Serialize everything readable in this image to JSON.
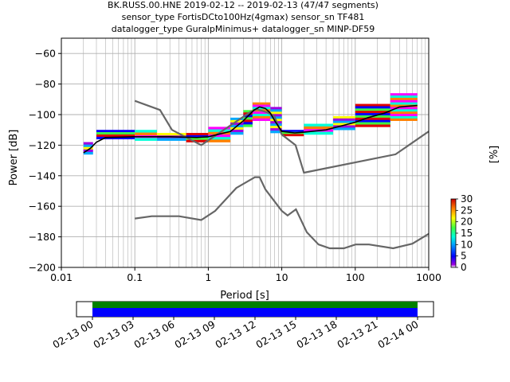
{
  "chart_data": {
    "type": "heatmap",
    "title_lines": [
      "BK.RUSS.00.HNE   2019-02-12 -- 2019-02-13  (47/47 segments)",
      "sensor_type FortisDCto100Hz(4gmax) sensor_sn TF481",
      "datalogger_type GuralpMinimus+ datalogger_sn MINP-DF59"
    ],
    "xlabel": "Period [s]",
    "ylabel": "Power [dB]",
    "xscale": "log",
    "xlim": [
      0.01,
      1000
    ],
    "ylim": [
      -200,
      -50
    ],
    "xticks": [
      {
        "v": 0.01,
        "label": "0.01"
      },
      {
        "v": 0.1,
        "label": "0.1"
      },
      {
        "v": 1,
        "label": "1"
      },
      {
        "v": 10,
        "label": "10"
      },
      {
        "v": 100,
        "label": "100"
      },
      {
        "v": 1000,
        "label": "1000"
      }
    ],
    "yticks": [
      {
        "v": -60,
        "label": "−60"
      },
      {
        "v": -80,
        "label": "−80"
      },
      {
        "v": -100,
        "label": "−100"
      },
      {
        "v": -120,
        "label": "−120"
      },
      {
        "v": -140,
        "label": "−140"
      },
      {
        "v": -160,
        "label": "−160"
      },
      {
        "v": -180,
        "label": "−180"
      },
      {
        "v": -200,
        "label": "−200"
      }
    ],
    "grid": true,
    "colorbar": {
      "label": "[%]",
      "range": [
        0,
        30
      ],
      "ticks": [
        {
          "v": 0,
          "label": "0"
        },
        {
          "v": 5,
          "label": "5"
        },
        {
          "v": 10,
          "label": "10"
        },
        {
          "v": 15,
          "label": "15"
        },
        {
          "v": 20,
          "label": "20"
        },
        {
          "v": 25,
          "label": "25"
        },
        {
          "v": 30,
          "label": "30"
        }
      ]
    },
    "nhnm": [
      [
        0.1,
        -91
      ],
      [
        0.22,
        -97
      ],
      [
        0.32,
        -110
      ],
      [
        0.8,
        -120
      ],
      [
        3.8,
        -98
      ],
      [
        4.6,
        -96.5
      ],
      [
        6.3,
        -98.5
      ],
      [
        7.9,
        -101
      ],
      [
        10,
        -113
      ],
      [
        15.4,
        -120
      ],
      [
        20,
        -138
      ],
      [
        354,
        -126
      ],
      [
        1000,
        -111
      ]
    ],
    "nlnm": [
      [
        0.1,
        -168
      ],
      [
        0.17,
        -166.5
      ],
      [
        0.4,
        -166.5
      ],
      [
        0.8,
        -169
      ],
      [
        1.24,
        -163
      ],
      [
        2.4,
        -148
      ],
      [
        4.3,
        -141
      ],
      [
        5,
        -141
      ],
      [
        6,
        -149
      ],
      [
        10,
        -163
      ],
      [
        12,
        -166
      ],
      [
        15.6,
        -162
      ],
      [
        21.9,
        -177
      ],
      [
        31.6,
        -185
      ],
      [
        45,
        -187.5
      ],
      [
        70,
        -187.5
      ],
      [
        101,
        -185
      ],
      [
        154,
        -185
      ],
      [
        328,
        -187.5
      ],
      [
        600,
        -184.5
      ],
      [
        1000,
        -178
      ]
    ],
    "median": [
      [
        0.02,
        -125
      ],
      [
        0.025,
        -122
      ],
      [
        0.03,
        -118
      ],
      [
        0.04,
        -115
      ],
      [
        0.1,
        -114.5
      ],
      [
        0.3,
        -114.5
      ],
      [
        0.7,
        -115
      ],
      [
        1,
        -114.5
      ],
      [
        2,
        -111
      ],
      [
        3,
        -104
      ],
      [
        4.2,
        -97
      ],
      [
        5,
        -95
      ],
      [
        6,
        -96
      ],
      [
        7,
        -99
      ],
      [
        8,
        -104
      ],
      [
        10,
        -111
      ],
      [
        15,
        -112
      ],
      [
        20,
        -111.5
      ],
      [
        40,
        -110
      ],
      [
        70,
        -107
      ],
      [
        100,
        -105
      ],
      [
        150,
        -102
      ],
      [
        250,
        -99
      ],
      [
        400,
        -95
      ],
      [
        700,
        -94
      ]
    ],
    "psd_band": [
      {
        "x": [
          0.02,
          0.027
        ],
        "y": [
          -126,
          -118
        ]
      },
      {
        "x": [
          0.03,
          0.1
        ],
        "y": [
          -116,
          -110
        ]
      },
      {
        "x": [
          0.1,
          0.2
        ],
        "y": [
          -117,
          -110
        ]
      },
      {
        "x": [
          0.2,
          0.5
        ],
        "y": [
          -117,
          -112
        ]
      },
      {
        "x": [
          0.5,
          1
        ],
        "y": [
          -118,
          -112
        ]
      },
      {
        "x": [
          1,
          2
        ],
        "y": [
          -118,
          -108
        ]
      },
      {
        "x": [
          2,
          3
        ],
        "y": [
          -113,
          -102
        ]
      },
      {
        "x": [
          3,
          4
        ],
        "y": [
          -108,
          -97
        ]
      },
      {
        "x": [
          4,
          7
        ],
        "y": [
          -104,
          -92
        ]
      },
      {
        "x": [
          7,
          10
        ],
        "y": [
          -112,
          -95
        ]
      },
      {
        "x": [
          10,
          20
        ],
        "y": [
          -114,
          -110
        ]
      },
      {
        "x": [
          20,
          50
        ],
        "y": [
          -113,
          -106
        ]
      },
      {
        "x": [
          50,
          100
        ],
        "y": [
          -110,
          -101
        ]
      },
      {
        "x": [
          100,
          300
        ],
        "y": [
          -108,
          -93
        ]
      },
      {
        "x": [
          300,
          700
        ],
        "y": [
          -104,
          -86
        ]
      }
    ],
    "timeline": {
      "ticks": [
        "02-13 00",
        "02-13 03",
        "02-13 06",
        "02-13 09",
        "02-13 12",
        "02-13 15",
        "02-13 18",
        "02-13 21",
        "02-14 00"
      ],
      "colors": {
        "green": "#008000",
        "blue": "#0000ff"
      }
    }
  }
}
